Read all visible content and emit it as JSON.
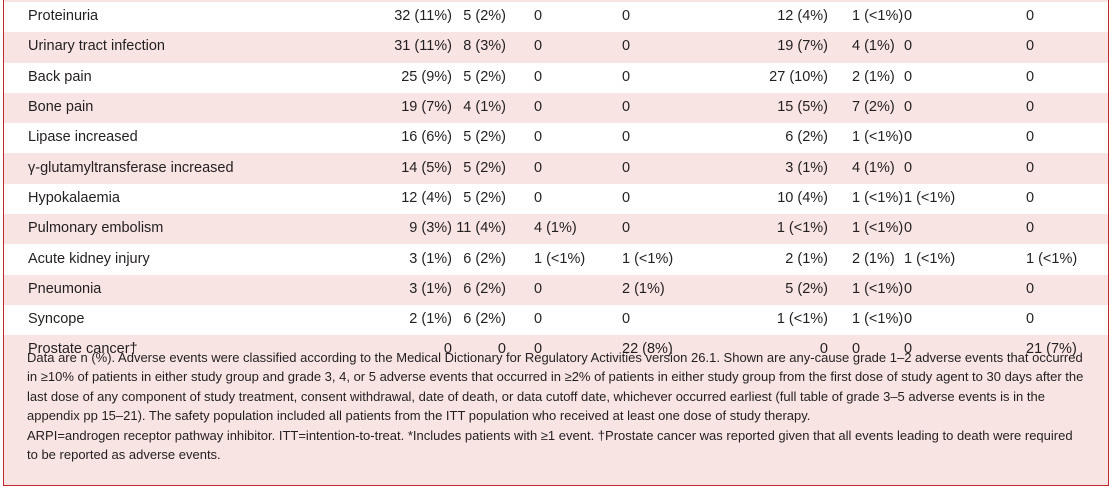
{
  "rows": [
    {
      "event": "Proteinuria",
      "c1": "32 (11%)",
      "c2": "5 (2%)",
      "c3": "0",
      "c4": "0",
      "c5": "12 (4%)",
      "c6": "1 (<1%)",
      "c7": "0",
      "c8": "0"
    },
    {
      "event": "Urinary tract infection",
      "c1": "31 (11%)",
      "c2": "8 (3%)",
      "c3": "0",
      "c4": "0",
      "c5": "19 (7%)",
      "c6": "4 (1%)",
      "c7": "0",
      "c8": "0"
    },
    {
      "event": "Back pain",
      "c1": "25 (9%)",
      "c2": "5 (2%)",
      "c3": "0",
      "c4": "0",
      "c5": "27 (10%)",
      "c6": "2 (1%)",
      "c7": "0",
      "c8": "0"
    },
    {
      "event": "Bone pain",
      "c1": "19 (7%)",
      "c2": "4 (1%)",
      "c3": "0",
      "c4": "0",
      "c5": "15 (5%)",
      "c6": "7 (2%)",
      "c7": "0",
      "c8": "0"
    },
    {
      "event": "Lipase increased",
      "c1": "16 (6%)",
      "c2": "5 (2%)",
      "c3": "0",
      "c4": "0",
      "c5": "6 (2%)",
      "c6": "1 (<1%)",
      "c7": "0",
      "c8": "0"
    },
    {
      "event": "γ-glutamyltransferase increased",
      "c1": "14 (5%)",
      "c2": "5 (2%)",
      "c3": "0",
      "c4": "0",
      "c5": "3 (1%)",
      "c6": "4 (1%)",
      "c7": "0",
      "c8": "0"
    },
    {
      "event": "Hypokalaemia",
      "c1": "12 (4%)",
      "c2": "5 (2%)",
      "c3": "0",
      "c4": "0",
      "c5": "10 (4%)",
      "c6": "1 (<1%)",
      "c7": "1 (<1%)",
      "c8": "0"
    },
    {
      "event": "Pulmonary embolism",
      "c1": "9 (3%)",
      "c2": "11 (4%)",
      "c3": "4 (1%)",
      "c4": "0",
      "c5": "1 (<1%)",
      "c6": "1 (<1%)",
      "c7": "0",
      "c8": "0"
    },
    {
      "event": "Acute kidney injury",
      "c1": "3 (1%)",
      "c2": "6 (2%)",
      "c3": "1 (<1%)",
      "c4": "1 (<1%)",
      "c5": "2 (1%)",
      "c6": "2 (1%)",
      "c7": "1 (<1%)",
      "c8": "1 (<1%)"
    },
    {
      "event": "Pneumonia",
      "c1": "3 (1%)",
      "c2": "6 (2%)",
      "c3": "0",
      "c4": "2 (1%)",
      "c5": "5 (2%)",
      "c6": "1 (<1%)",
      "c7": "0",
      "c8": "0"
    },
    {
      "event": "Syncope",
      "c1": "2 (1%)",
      "c2": "6 (2%)",
      "c3": "0",
      "c4": "0",
      "c5": "1 (<1%)",
      "c6": "1 (<1%)",
      "c7": "0",
      "c8": "0"
    },
    {
      "event": "Prostate cancer†",
      "c1": "0",
      "c2": "0",
      "c3": "0",
      "c4": "22 (8%)",
      "c5": "0",
      "c6": "0",
      "c7": "0",
      "c8": "21 (7%)"
    }
  ],
  "footnote": {
    "p1": "Data are n (%). Adverse events were classified according to the Medical Dictionary for Regulatory Activities version 26.1. Shown are any-cause grade 1–2 adverse events that occurred in ≥10% of patients in either study group and grade 3, 4, or 5 adverse events that occurred in ≥2% of patients in either study group from the first dose of study agent to 30 days after the last dose of any component of study treatment, consent withdrawal, date of death, or data cutoff date, whichever occurred earliest (full table of grade 3–5 adverse events is in the appendix pp 15–21). The safety population included all patients from the ITT population who received at least one dose of study therapy.",
    "p2": "ARPI=androgen receptor pathway inhibitor. ITT=intention-to-treat. *Includes patients with ≥1 event. †Prostate cancer was reported given that all events leading to death were required to be reported as adverse events."
  }
}
